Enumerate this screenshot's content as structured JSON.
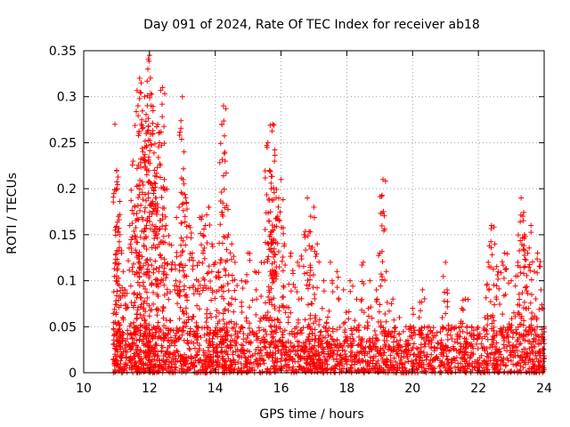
{
  "chart_data": {
    "type": "scatter",
    "title": "Day 091 of 2024, Rate Of TEC Index for receiver ab18",
    "xlabel": "GPS time / hours",
    "ylabel": "ROTI / TECUs",
    "xlim": [
      10,
      24
    ],
    "ylim": [
      0,
      0.35
    ],
    "xticks": [
      10,
      12,
      14,
      16,
      18,
      20,
      22,
      24
    ],
    "yticks": [
      0,
      0.05,
      0.1,
      0.15,
      0.2,
      0.25,
      0.3,
      0.35
    ],
    "xtick_labels": [
      "10",
      "12",
      "14",
      "16",
      "18",
      "20",
      "22",
      "24"
    ],
    "ytick_labels": [
      "0",
      "0.05",
      "0.1",
      "0.15",
      "0.2",
      "0.25",
      "0.3",
      "0.35"
    ],
    "grid": true,
    "marker": "+",
    "series_color": "#ff0000",
    "series": [
      {
        "name": "ROTI",
        "points": [
          [
            10.95,
            0.27
          ],
          [
            11.0,
            0.22
          ],
          [
            11.02,
            0.2
          ],
          [
            11.05,
            0.17
          ],
          [
            11.1,
            0.15
          ],
          [
            11.15,
            0.13
          ],
          [
            11.2,
            0.11
          ],
          [
            11.25,
            0.09
          ],
          [
            11.3,
            0.07
          ],
          [
            11.4,
            0.16
          ],
          [
            11.5,
            0.23
          ],
          [
            11.55,
            0.18
          ],
          [
            11.6,
            0.13
          ],
          [
            11.65,
            0.29
          ],
          [
            11.7,
            0.32
          ],
          [
            11.75,
            0.27
          ],
          [
            11.8,
            0.24
          ],
          [
            11.85,
            0.3
          ],
          [
            11.9,
            0.26
          ],
          [
            11.95,
            0.33
          ],
          [
            12.0,
            0.345
          ],
          [
            12.05,
            0.29
          ],
          [
            12.1,
            0.26
          ],
          [
            12.15,
            0.22
          ],
          [
            12.2,
            0.19
          ],
          [
            12.25,
            0.27
          ],
          [
            12.3,
            0.25
          ],
          [
            12.4,
            0.31
          ],
          [
            12.45,
            0.21
          ],
          [
            12.5,
            0.16
          ],
          [
            12.6,
            0.14
          ],
          [
            12.7,
            0.12
          ],
          [
            12.8,
            0.1
          ],
          [
            12.9,
            0.18
          ],
          [
            13.0,
            0.3
          ],
          [
            13.05,
            0.24
          ],
          [
            13.1,
            0.19
          ],
          [
            13.2,
            0.16
          ],
          [
            13.3,
            0.13
          ],
          [
            13.4,
            0.09
          ],
          [
            13.5,
            0.12
          ],
          [
            13.6,
            0.17
          ],
          [
            13.7,
            0.16
          ],
          [
            13.8,
            0.18
          ],
          [
            13.9,
            0.14
          ],
          [
            14.0,
            0.12
          ],
          [
            14.1,
            0.11
          ],
          [
            14.2,
            0.27
          ],
          [
            14.25,
            0.29
          ],
          [
            14.3,
            0.23
          ],
          [
            14.4,
            0.15
          ],
          [
            14.5,
            0.14
          ],
          [
            14.6,
            0.12
          ],
          [
            14.8,
            0.1
          ],
          [
            15.0,
            0.13
          ],
          [
            15.2,
            0.11
          ],
          [
            15.4,
            0.12
          ],
          [
            15.6,
            0.25
          ],
          [
            15.65,
            0.22
          ],
          [
            15.7,
            0.2
          ],
          [
            15.75,
            0.27
          ],
          [
            15.8,
            0.23
          ],
          [
            15.85,
            0.19
          ],
          [
            15.9,
            0.17
          ],
          [
            16.0,
            0.21
          ],
          [
            16.1,
            0.14
          ],
          [
            16.3,
            0.13
          ],
          [
            16.5,
            0.12
          ],
          [
            16.7,
            0.15
          ],
          [
            16.8,
            0.19
          ],
          [
            16.9,
            0.17
          ],
          [
            17.0,
            0.18
          ],
          [
            17.1,
            0.14
          ],
          [
            17.3,
            0.1
          ],
          [
            17.5,
            0.12
          ],
          [
            17.7,
            0.11
          ],
          [
            17.9,
            0.09
          ],
          [
            18.1,
            0.1
          ],
          [
            18.3,
            0.08
          ],
          [
            18.5,
            0.12
          ],
          [
            18.7,
            0.1
          ],
          [
            18.9,
            0.09
          ],
          [
            19.0,
            0.13
          ],
          [
            19.1,
            0.21
          ],
          [
            19.2,
            0.11
          ],
          [
            19.4,
            0.08
          ],
          [
            19.6,
            0.06
          ],
          [
            19.8,
            0.05
          ],
          [
            20.0,
            0.07
          ],
          [
            20.2,
            0.06
          ],
          [
            20.3,
            0.09
          ],
          [
            20.5,
            0.05
          ],
          [
            20.7,
            0.04
          ],
          [
            20.9,
            0.06
          ],
          [
            21.0,
            0.12
          ],
          [
            21.05,
            0.09
          ],
          [
            21.2,
            0.05
          ],
          [
            21.4,
            0.04
          ],
          [
            21.5,
            0.07
          ],
          [
            21.6,
            0.08
          ],
          [
            21.8,
            0.05
          ],
          [
            22.0,
            0.04
          ],
          [
            22.2,
            0.06
          ],
          [
            22.3,
            0.12
          ],
          [
            22.4,
            0.16
          ],
          [
            22.5,
            0.14
          ],
          [
            22.6,
            0.11
          ],
          [
            22.8,
            0.13
          ],
          [
            23.0,
            0.1
          ],
          [
            23.2,
            0.12
          ],
          [
            23.3,
            0.19
          ],
          [
            23.35,
            0.17
          ],
          [
            23.4,
            0.15
          ],
          [
            23.5,
            0.13
          ],
          [
            23.6,
            0.16
          ],
          [
            23.7,
            0.11
          ],
          [
            23.8,
            0.13
          ],
          [
            23.9,
            0.09
          ],
          [
            24.0,
            0.05
          ]
        ],
        "dense_baseline": {
          "x_range": [
            10.9,
            24.0
          ],
          "y_range": [
            0.0,
            0.05
          ],
          "count": 1800
        }
      }
    ]
  }
}
